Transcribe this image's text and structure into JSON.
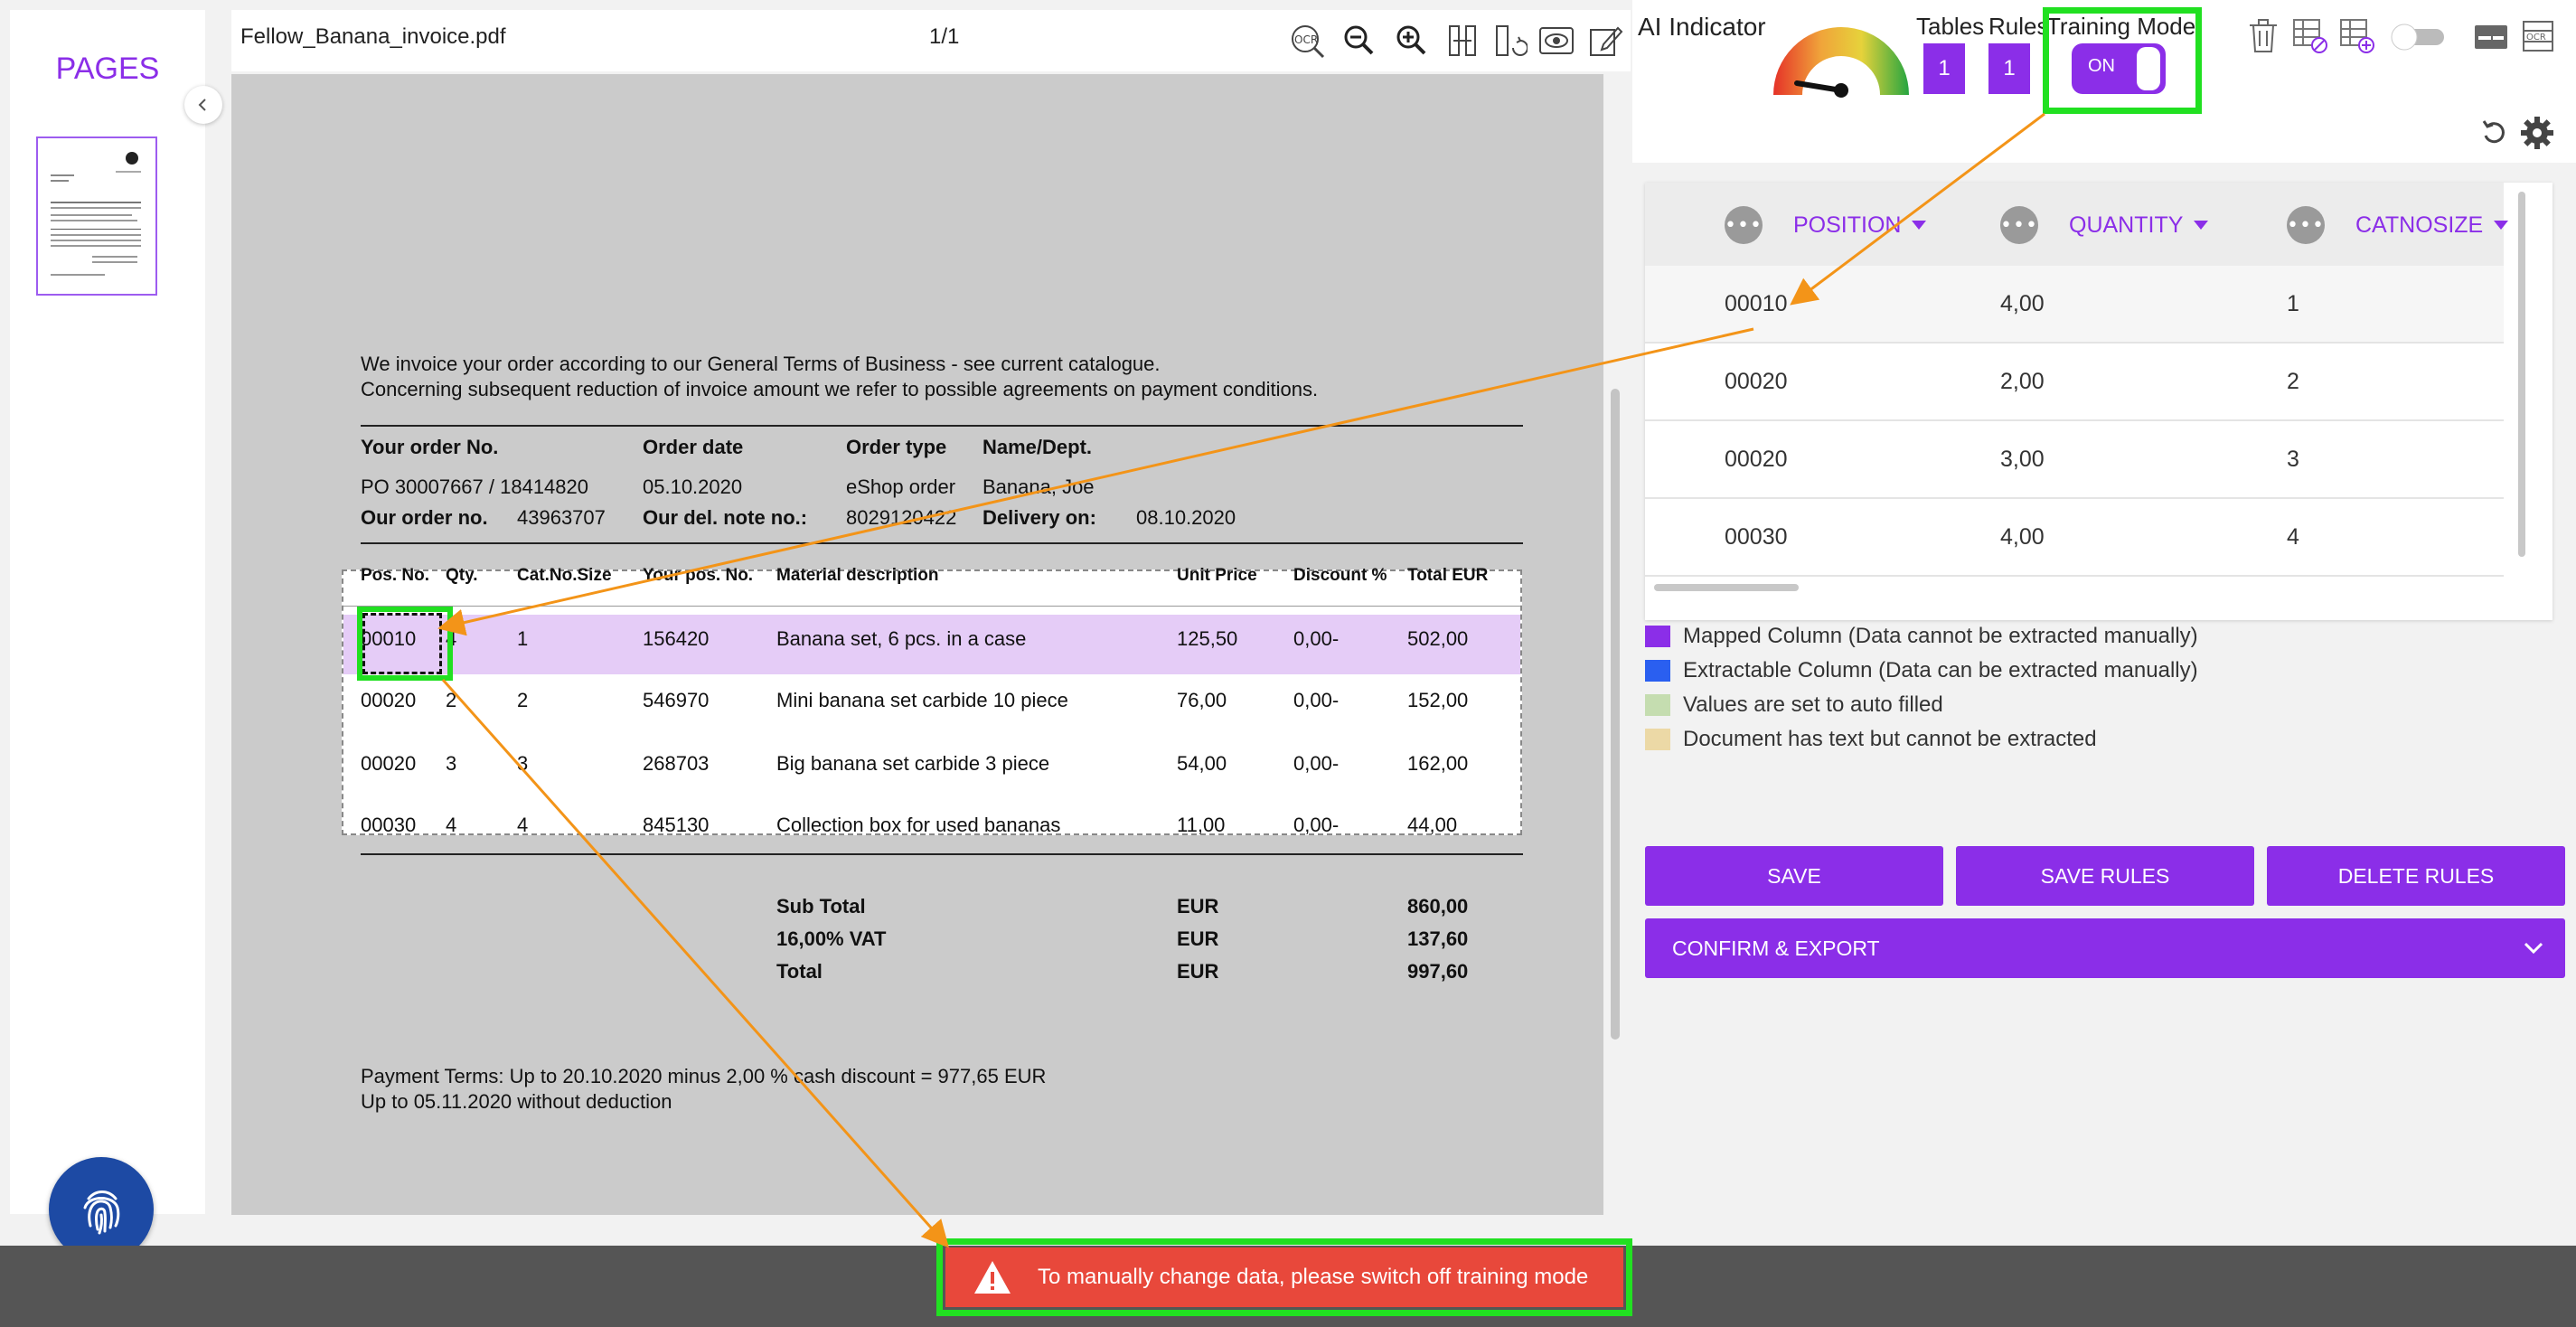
{
  "pages_panel": {
    "title": "PAGES"
  },
  "viewer": {
    "filename": "Fellow_Banana_invoice.pdf",
    "page_count": "1/1",
    "tools": [
      "ocr-icon",
      "zoom-out-icon",
      "zoom-in-icon",
      "fit-width-icon",
      "rotate-icon",
      "preview-icon",
      "edit-icon"
    ]
  },
  "document": {
    "intro_line1": "We invoice your order according to our General Terms of Business - see current catalogue.",
    "intro_line2": "Concerning subsequent reduction of invoice amount we refer to possible agreements on payment conditions.",
    "meta": {
      "your_order_label": "Your order No.",
      "order_date_label": "Order date",
      "order_type_label": "Order type",
      "name_dept_label": "Name/Dept.",
      "your_order_value": "PO 30007667 / 18414820",
      "order_date_value": "05.10.2020",
      "order_type_value": "eShop order",
      "name_dept_value": "Banana, Joe",
      "our_order_label": "Our order no.",
      "our_order_value": "43963707",
      "del_note_label": "Our del. note no.:",
      "del_note_value": "8029120422",
      "delivery_label": "Delivery on:",
      "delivery_value": "08.10.2020"
    },
    "table_headers": [
      "Pos. No.",
      "Qty.",
      "Cat.No.Size",
      "Your pos. No.",
      "Material description",
      "Unit Price",
      "Discount %",
      "Total EUR"
    ],
    "table_rows": [
      [
        "00010",
        "4",
        "1",
        "156420",
        "Banana set, 6 pcs. in a case",
        "125,50",
        "0,00-",
        "502,00"
      ],
      [
        "00020",
        "2",
        "2",
        "546970",
        "Mini banana set carbide 10 piece",
        "76,00",
        "0,00-",
        "152,00"
      ],
      [
        "00020",
        "3",
        "3",
        "268703",
        "Big banana set carbide 3 piece",
        "54,00",
        "0,00-",
        "162,00"
      ],
      [
        "00030",
        "4",
        "4",
        "845130",
        "Collection box for used bananas",
        "11,00",
        "0,00-",
        "44,00"
      ]
    ],
    "totals": [
      {
        "label": "Sub Total",
        "currency": "EUR",
        "value": "860,00"
      },
      {
        "label": "16,00% VAT",
        "currency": "EUR",
        "value": "137,60"
      },
      {
        "label": "Total",
        "currency": "EUR",
        "value": "997,60"
      }
    ],
    "payment_line1": "Payment Terms: Up to 20.10.2020 minus 2,00 % cash discount = 977,65 EUR",
    "payment_line2": "Up to 05.11.2020 without deduction"
  },
  "right_panel": {
    "ai_indicator_label": "AI Indicator",
    "tables_label": "Tables",
    "rules_label": "Rules",
    "training_mode_label": "Training Mode",
    "tables_count": "1",
    "rules_count": "1",
    "training_toggle": "ON",
    "table": {
      "columns": [
        "POSITION",
        "QUANTITY",
        "CATNOSIZE"
      ],
      "rows": [
        [
          "00010",
          "4,00",
          "1"
        ],
        [
          "00020",
          "2,00",
          "2"
        ],
        [
          "00020",
          "3,00",
          "3"
        ],
        [
          "00030",
          "4,00",
          "4"
        ]
      ]
    },
    "legend": [
      {
        "color": "#8b2ee8",
        "text": "Mapped Column (Data cannot be extracted manually)"
      },
      {
        "color": "#2a5ff0",
        "text": "Extractable Column (Data can be extracted manually)"
      },
      {
        "color": "#c5ddb0",
        "text": "Values are set to auto filled"
      },
      {
        "color": "#ecd9a6",
        "text": "Document has text but cannot be extracted"
      }
    ],
    "buttons": {
      "save": "SAVE",
      "save_rules": "SAVE RULES",
      "delete_rules": "DELETE RULES",
      "confirm_export": "CONFIRM & EXPORT"
    }
  },
  "toast": {
    "message": "To manually change data, please switch off training mode"
  },
  "colors": {
    "accent": "#8b2ee8",
    "highlight": "#21e021",
    "error": "#e8483b",
    "annotation": "#f39418"
  }
}
